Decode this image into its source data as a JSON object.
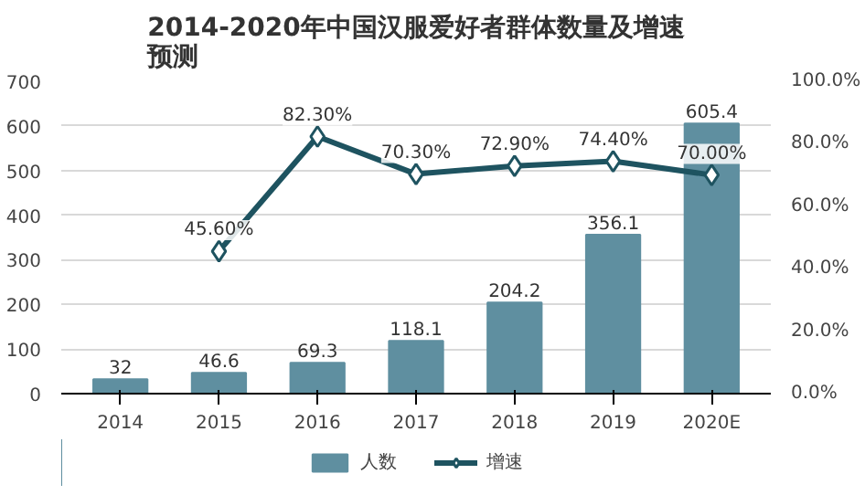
{
  "chart_data": {
    "type": "bar",
    "title": "2014-2020年中国汉服爱好者群体数量及增速预测",
    "categories": [
      "2014",
      "2015",
      "2016",
      "2017",
      "2018",
      "2019",
      "2020E"
    ],
    "series": [
      {
        "name": "人数",
        "color": "#5f8fa0",
        "values": [
          32,
          46.6,
          69.3,
          118.1,
          204.2,
          356.1,
          605.4
        ],
        "data_labels": true
      },
      {
        "name": "增速",
        "type": "line",
        "axis": "y2",
        "color": "#1e5360",
        "marker": "diamond",
        "values": [
          null,
          45.6,
          82.3,
          70.3,
          72.9,
          74.4,
          70.0
        ],
        "value_labels": [
          null,
          "45.60%",
          "82.30%",
          "70.30%",
          "72.90%",
          "74.40%",
          "70.00%"
        ]
      }
    ],
    "ylim": [
      0,
      700
    ],
    "yticks": [
      0,
      100,
      200,
      300,
      400,
      500,
      600,
      700
    ],
    "y2lim": [
      0,
      100
    ],
    "y2ticks": [
      {
        "value": 0,
        "label": "0.0%"
      },
      {
        "value": 20,
        "label": "20.0%"
      },
      {
        "value": 40,
        "label": "40.0%"
      },
      {
        "value": 60,
        "label": "60.0%"
      },
      {
        "value": 80,
        "label": "80.0%"
      },
      {
        "value": 100,
        "label": "100.0%"
      }
    ],
    "grid": "y",
    "legend": "bottom"
  }
}
